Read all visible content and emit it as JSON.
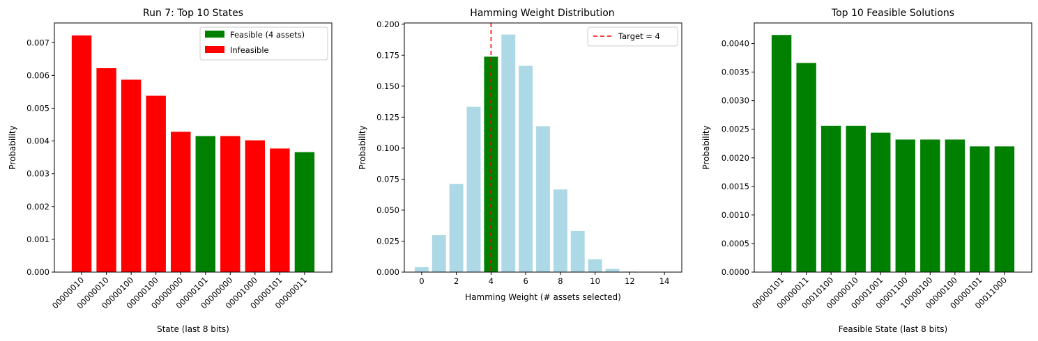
{
  "chart_data": [
    {
      "type": "bar",
      "title": "Run 7: Top 10 States",
      "xlabel": "State (last 8 bits)",
      "ylabel": "Probability",
      "categories": [
        "00000010",
        "00000010",
        "00000100",
        "00000100",
        "00000000",
        "00000101",
        "00000000",
        "00001000",
        "00000101",
        "00000011"
      ],
      "values": [
        0.00722,
        0.00622,
        0.00587,
        0.00538,
        0.00428,
        0.00415,
        0.00415,
        0.00402,
        0.00377,
        0.00366
      ],
      "feasible": [
        false,
        false,
        false,
        false,
        false,
        true,
        false,
        false,
        false,
        true
      ],
      "ylim": [
        0,
        0.0076
      ],
      "yticks": [
        0,
        0.001,
        0.002,
        0.003,
        0.004,
        0.005,
        0.006,
        0.007
      ],
      "ytick_labels": [
        "0.000",
        "0.001",
        "0.002",
        "0.003",
        "0.004",
        "0.005",
        "0.006",
        "0.007"
      ],
      "legend": {
        "placement": "top-right",
        "entries": [
          {
            "label": "Feasible (4 assets)",
            "color": "#008000"
          },
          {
            "label": "Infeasible",
            "color": "#ff0000"
          }
        ]
      },
      "grid": false
    },
    {
      "type": "bar",
      "title": "Hamming Weight Distribution",
      "xlabel": "Hamming Weight (# assets selected)",
      "ylabel": "Probability",
      "x": [
        0,
        1,
        2,
        3,
        4,
        5,
        6,
        7,
        8,
        9,
        10,
        11,
        12,
        13,
        14
      ],
      "values": [
        0.004,
        0.0298,
        0.0712,
        0.1333,
        0.1738,
        0.1917,
        0.1664,
        0.1177,
        0.0667,
        0.0332,
        0.0104,
        0.0027,
        0.0004,
        0.0001,
        0.0
      ],
      "highlight_x": 4,
      "xlim": [
        -1.0,
        15.0
      ],
      "ylim": [
        0,
        0.201
      ],
      "xticks": [
        0,
        2,
        4,
        6,
        8,
        10,
        12,
        14
      ],
      "yticks": [
        0,
        0.025,
        0.05,
        0.075,
        0.1,
        0.125,
        0.15,
        0.175,
        0.2
      ],
      "ytick_labels": [
        "0.000",
        "0.025",
        "0.050",
        "0.075",
        "0.100",
        "0.125",
        "0.150",
        "0.175",
        "0.200"
      ],
      "target_line": {
        "x": 4,
        "label": "Target = 4",
        "color": "#ff0000",
        "style": "dashed"
      },
      "colors": {
        "default": "#add8e6",
        "highlight": "#008000"
      },
      "legend": {
        "placement": "top-right",
        "entries": [
          {
            "label": "Target = 4",
            "color": "#ff0000"
          }
        ]
      },
      "grid": false
    },
    {
      "type": "bar",
      "title": "Top 10 Feasible Solutions",
      "xlabel": "Feasible State (last 8 bits)",
      "ylabel": "Probability",
      "categories": [
        "00000101",
        "00000011",
        "00010100",
        "00000010",
        "00001001",
        "00001100",
        "10000100",
        "00000100",
        "00000101",
        "00011000"
      ],
      "values": [
        0.00415,
        0.00366,
        0.00256,
        0.00256,
        0.00244,
        0.00232,
        0.00232,
        0.00232,
        0.0022,
        0.0022
      ],
      "ylim": [
        0,
        0.00436
      ],
      "yticks": [
        0,
        0.0005,
        0.001,
        0.0015,
        0.002,
        0.0025,
        0.003,
        0.0035,
        0.004
      ],
      "ytick_labels": [
        "0.0000",
        "0.0005",
        "0.0010",
        "0.0015",
        "0.0020",
        "0.0025",
        "0.0030",
        "0.0035",
        "0.0040"
      ],
      "color": "#008000",
      "grid": false
    }
  ]
}
